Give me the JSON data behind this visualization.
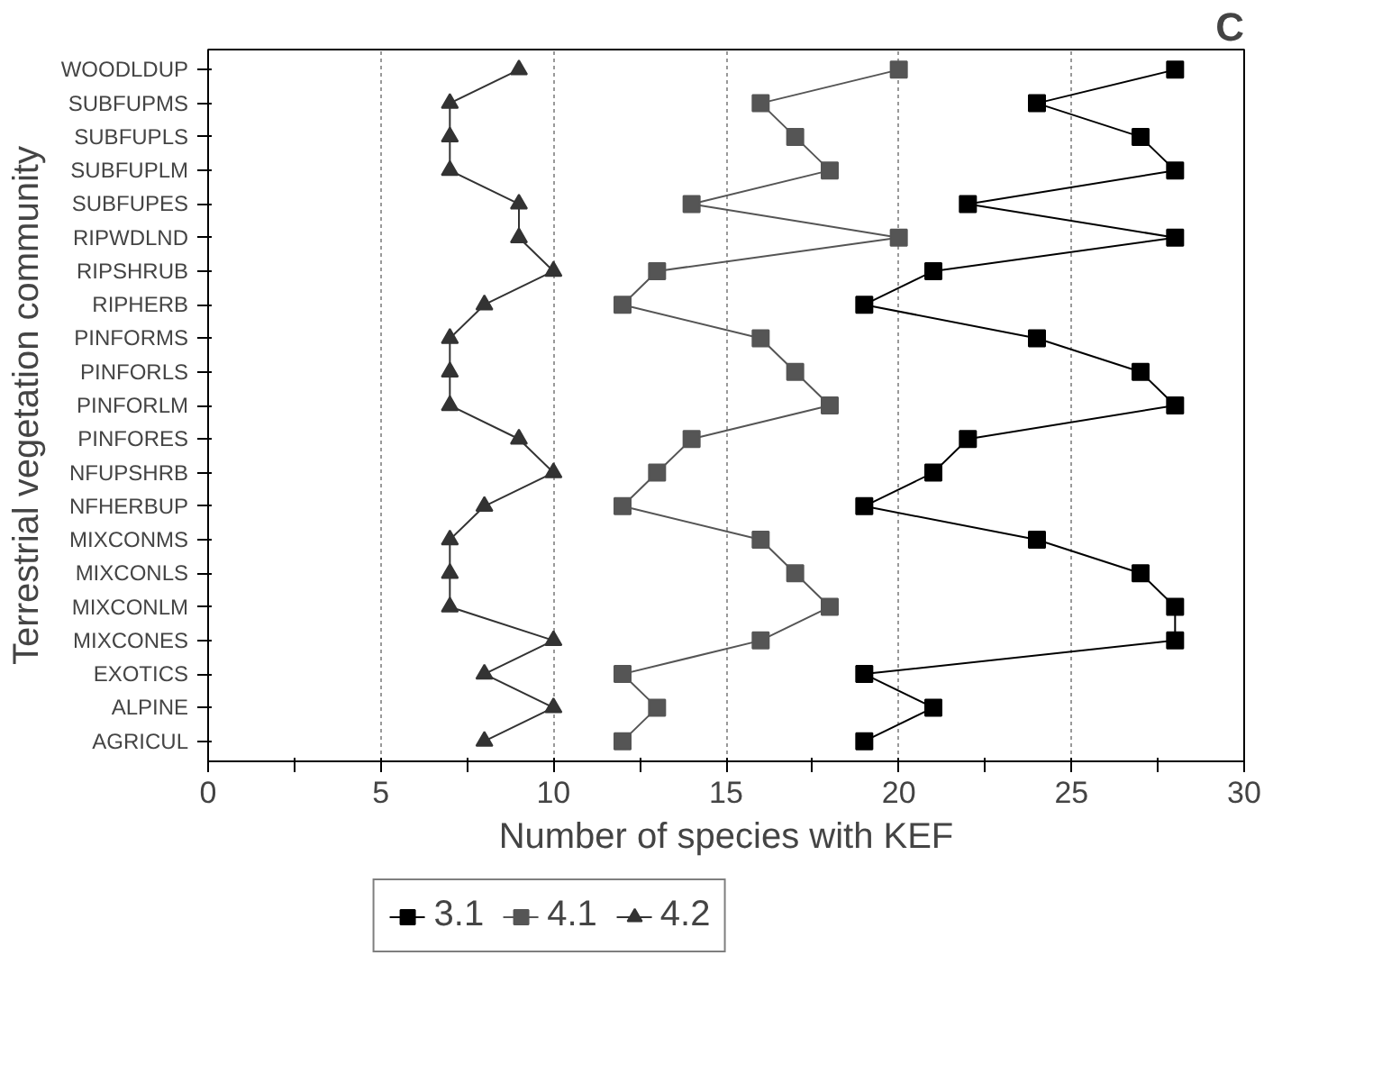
{
  "chart_data": {
    "type": "line",
    "orientation": "horizontal",
    "ylabel": "Terrestrial vegetation community",
    "xlabel": "Number of species with KEF",
    "annotations": [
      "C"
    ],
    "categories": [
      "WOODLDUP",
      "SUBFUPMS",
      "SUBFUPLS",
      "SUBFUPLM",
      "SUBFUPES",
      "RIPWDLND",
      "RIPSHRUB",
      "RIPHERB",
      "PINFORMS",
      "PINFORLS",
      "PINFORLM",
      "PINFORES",
      "NFUPSHRB",
      "NFHERBUP",
      "MIXCONMS",
      "MIXCONLS",
      "MIXCONLM",
      "MIXCONES",
      "EXOTICS",
      "ALPINE",
      "AGRICUL"
    ],
    "xlim": [
      0,
      30
    ],
    "xticks": [
      0,
      {
        "value": 2.5,
        "label": null
      },
      5,
      {
        "value": 7.5,
        "label": null
      },
      10,
      {
        "value": 12.5,
        "label": null
      },
      15,
      {
        "value": 17.5,
        "label": null
      },
      20,
      {
        "value": 22.5,
        "label": null
      },
      25,
      {
        "value": 27.5,
        "label": null
      },
      30
    ],
    "grid": "x",
    "legend": "bottom",
    "series": [
      {
        "name": "3.1",
        "color": "#000000",
        "marker": "square",
        "values": [
          28,
          24,
          27,
          28,
          22,
          28,
          21,
          19,
          24,
          27,
          28,
          22,
          21,
          19,
          24,
          27,
          28,
          28,
          19,
          21,
          19
        ]
      },
      {
        "name": "4.1",
        "color": "#555555",
        "marker": "square",
        "values": [
          20,
          16,
          17,
          18,
          14,
          20,
          13,
          12,
          16,
          17,
          18,
          14,
          13,
          12,
          16,
          17,
          18,
          16,
          12,
          13,
          12
        ]
      },
      {
        "name": "4.2",
        "color": "#333333",
        "marker": "triangle",
        "values": [
          9,
          7,
          7,
          7,
          9,
          9,
          10,
          8,
          7,
          7,
          7,
          9,
          10,
          8,
          7,
          7,
          7,
          10,
          8,
          10,
          8
        ]
      }
    ]
  }
}
